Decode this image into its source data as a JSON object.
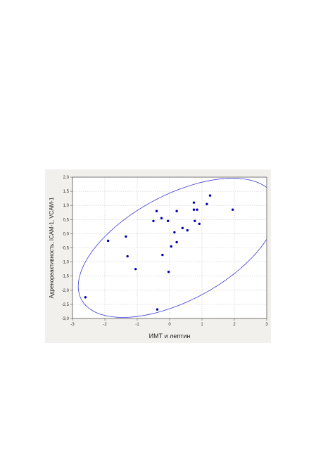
{
  "chart_data": {
    "type": "scatter",
    "xlabel": "ИМТ и лептин",
    "ylabel": "Адренореактивность, ICAM-1, VCAM-1",
    "xlim": [
      -3,
      3
    ],
    "ylim": [
      -3,
      2
    ],
    "x_ticks": [
      -3,
      -2,
      -1,
      0,
      1,
      2,
      3
    ],
    "x_tick_labels": [
      "-3",
      "-2",
      "-1",
      "0",
      "1",
      "2",
      "3"
    ],
    "y_ticks": [
      2.0,
      1.5,
      1.0,
      0.5,
      0.0,
      -0.5,
      -1.0,
      -1.5,
      -2.0,
      -2.5,
      -3.0
    ],
    "y_tick_labels": [
      "2,0",
      "1,5",
      "1,0",
      "0,5",
      "0,0",
      "-0,5",
      "-1,0",
      "-1,5",
      "-2,0",
      "-2,5",
      "-3,0"
    ],
    "grid": true,
    "points": [
      {
        "x": -2.6,
        "y": -2.25
      },
      {
        "x": -1.9,
        "y": -0.25
      },
      {
        "x": -1.35,
        "y": -0.1
      },
      {
        "x": -1.3,
        "y": -0.8
      },
      {
        "x": -1.05,
        "y": -1.25
      },
      {
        "x": -0.5,
        "y": 0.45
      },
      {
        "x": -0.4,
        "y": 0.8
      },
      {
        "x": -0.38,
        "y": -2.68
      },
      {
        "x": -0.25,
        "y": 0.55
      },
      {
        "x": -0.22,
        "y": -0.75
      },
      {
        "x": -0.05,
        "y": 0.45
      },
      {
        "x": -0.03,
        "y": -1.35
      },
      {
        "x": 0.05,
        "y": -0.45
      },
      {
        "x": 0.15,
        "y": 0.05
      },
      {
        "x": 0.22,
        "y": 0.8
      },
      {
        "x": 0.22,
        "y": -0.3
      },
      {
        "x": 0.4,
        "y": 0.2
      },
      {
        "x": 0.55,
        "y": 0.12
      },
      {
        "x": 0.75,
        "y": 1.1
      },
      {
        "x": 0.75,
        "y": 0.85
      },
      {
        "x": 0.78,
        "y": 0.45
      },
      {
        "x": 0.85,
        "y": 0.85
      },
      {
        "x": 0.92,
        "y": 0.35
      },
      {
        "x": 1.15,
        "y": 1.05
      },
      {
        "x": 1.25,
        "y": 1.35
      },
      {
        "x": 1.95,
        "y": 0.85
      }
    ],
    "ellipse": {
      "center": [
        0.25,
        -0.5
      ],
      "semi_major": 3.5,
      "semi_minor": 1.8,
      "angle_deg": 34
    },
    "colors": {
      "points": "#0000b8",
      "ellipse": "#3a3ad8",
      "grid": "#c9c9c9",
      "axes": "#555555",
      "background": "#f2f0ec"
    }
  }
}
